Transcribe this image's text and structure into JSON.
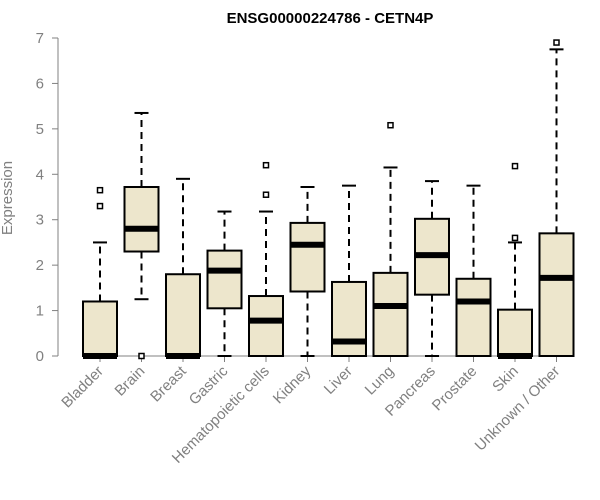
{
  "chart_data": {
    "type": "box",
    "title": "ENSG00000224786 - CETN4P",
    "xlabel": "",
    "ylabel": "Expression",
    "ylim": [
      0,
      7
    ],
    "yticks": [
      0,
      1,
      2,
      3,
      4,
      5,
      6,
      7
    ],
    "grid": false,
    "colors": {
      "box_fill": "#ede6cc",
      "stroke": "#000000",
      "axis": "#808080"
    },
    "categories": [
      "Bladder",
      "Brain",
      "Breast",
      "Gastric",
      "Hematopoietic cells",
      "Kidney",
      "Liver",
      "Lung",
      "Pancreas",
      "Prostate",
      "Skin",
      "Unknown / Other"
    ],
    "boxes": [
      {
        "whisker_low": 0,
        "q1": 0,
        "median": 0,
        "q3": 1.2,
        "whisker_high": 2.5,
        "outliers": [
          3.3,
          3.65
        ]
      },
      {
        "whisker_low": 1.25,
        "q1": 2.3,
        "median": 2.8,
        "q3": 3.72,
        "whisker_high": 5.35,
        "outliers": [
          0
        ]
      },
      {
        "whisker_low": 0,
        "q1": 0,
        "median": 0,
        "q3": 1.8,
        "whisker_high": 3.9,
        "outliers": []
      },
      {
        "whisker_low": 0,
        "q1": 1.05,
        "median": 1.88,
        "q3": 2.32,
        "whisker_high": 3.18,
        "outliers": []
      },
      {
        "whisker_low": 0,
        "q1": 0,
        "median": 0.78,
        "q3": 1.32,
        "whisker_high": 3.18,
        "outliers": [
          3.55,
          4.2
        ]
      },
      {
        "whisker_low": 0,
        "q1": 1.42,
        "median": 2.45,
        "q3": 2.93,
        "whisker_high": 3.72,
        "outliers": []
      },
      {
        "whisker_low": 0,
        "q1": 0,
        "median": 0.32,
        "q3": 1.63,
        "whisker_high": 3.75,
        "outliers": []
      },
      {
        "whisker_low": 0,
        "q1": 0,
        "median": 1.1,
        "q3": 1.83,
        "whisker_high": 4.15,
        "outliers": [
          5.08
        ]
      },
      {
        "whisker_low": 0,
        "q1": 1.35,
        "median": 2.22,
        "q3": 3.02,
        "whisker_high": 3.85,
        "outliers": []
      },
      {
        "whisker_low": 0,
        "q1": 0,
        "median": 1.2,
        "q3": 1.7,
        "whisker_high": 3.75,
        "outliers": []
      },
      {
        "whisker_low": 0,
        "q1": 0,
        "median": 0,
        "q3": 1.02,
        "whisker_high": 2.5,
        "outliers": [
          2.6,
          4.18
        ]
      },
      {
        "whisker_low": 0,
        "q1": 0,
        "median": 1.72,
        "q3": 2.7,
        "whisker_high": 6.75,
        "outliers": [
          6.9
        ]
      }
    ]
  }
}
